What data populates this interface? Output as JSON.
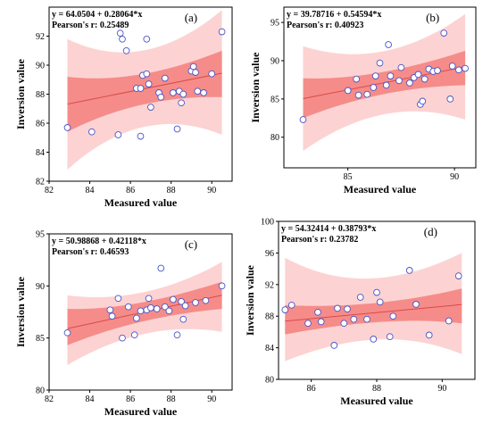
{
  "chart_data": [
    {
      "type": "scatter",
      "panel_label": "(a)",
      "equation": "y = 64.0504 + 0.28064*x",
      "pearson": "Pearson's r: 0.25489",
      "xlabel": "Measured value",
      "ylabel": "Inversion value",
      "xlim": [
        82,
        91
      ],
      "ylim": [
        82,
        94
      ],
      "xticks": [
        82,
        84,
        86,
        88,
        90
      ],
      "yticks": [
        82,
        84,
        86,
        88,
        90,
        92
      ],
      "intercept": 64.0504,
      "slope": 0.28064,
      "fit_x": [
        82.9,
        90.5
      ],
      "confidence_band": {
        "lower_start": 85.4,
        "lower_end": 87.8,
        "upper_start": 89.2,
        "upper_end": 91.0
      },
      "prediction_band": {
        "lower_start": 82.8,
        "lower_end": 85.2,
        "upper_start": 91.8,
        "upper_end": 93.8
      },
      "points": [
        [
          82.9,
          85.7
        ],
        [
          84.1,
          85.4
        ],
        [
          85.4,
          85.2
        ],
        [
          85.5,
          92.2
        ],
        [
          85.6,
          91.8
        ],
        [
          85.8,
          91.0
        ],
        [
          86.3,
          88.4
        ],
        [
          86.5,
          85.1
        ],
        [
          86.5,
          88.4
        ],
        [
          86.6,
          89.3
        ],
        [
          86.8,
          89.4
        ],
        [
          86.8,
          91.8
        ],
        [
          86.9,
          88.7
        ],
        [
          87.0,
          87.1
        ],
        [
          87.4,
          88.1
        ],
        [
          87.5,
          87.8
        ],
        [
          87.7,
          89.1
        ],
        [
          88.1,
          88.1
        ],
        [
          88.3,
          85.6
        ],
        [
          88.4,
          88.2
        ],
        [
          88.5,
          87.4
        ],
        [
          88.6,
          88.0
        ],
        [
          89.0,
          89.6
        ],
        [
          89.1,
          89.9
        ],
        [
          89.2,
          89.5
        ],
        [
          89.3,
          88.2
        ],
        [
          89.6,
          88.1
        ],
        [
          90.0,
          89.4
        ],
        [
          90.5,
          92.3
        ]
      ]
    },
    {
      "type": "scatter",
      "panel_label": "(b)",
      "equation": "y = 39.78716 + 0.54594*x",
      "pearson": "Pearson's r: 0.40923",
      "xlabel": "Measured value",
      "ylabel": "Inversion value",
      "xlim": [
        82,
        91
      ],
      "ylim": [
        76,
        97
      ],
      "xticks": [
        85,
        90
      ],
      "yticks": [
        80,
        85,
        90,
        95
      ],
      "intercept": 39.78716,
      "slope": 0.54594,
      "fit_x": [
        82.9,
        90.5
      ],
      "confidence_band": {
        "lower_start": 82.5,
        "lower_end": 86.8,
        "upper_start": 87.7,
        "upper_end": 91.3
      },
      "prediction_band": {
        "lower_start": 78.2,
        "lower_end": 82.3,
        "upper_start": 91.9,
        "upper_end": 96.1
      },
      "points": [
        [
          82.9,
          82.3
        ],
        [
          85.0,
          86.1
        ],
        [
          85.4,
          87.6
        ],
        [
          85.5,
          85.5
        ],
        [
          85.9,
          85.6
        ],
        [
          86.2,
          86.5
        ],
        [
          86.3,
          88.0
        ],
        [
          86.5,
          89.7
        ],
        [
          86.8,
          86.8
        ],
        [
          86.9,
          92.1
        ],
        [
          87.0,
          88.0
        ],
        [
          87.4,
          87.4
        ],
        [
          87.5,
          89.1
        ],
        [
          87.9,
          87.1
        ],
        [
          88.1,
          87.8
        ],
        [
          88.3,
          88.2
        ],
        [
          88.4,
          84.3
        ],
        [
          88.5,
          84.7
        ],
        [
          88.6,
          87.6
        ],
        [
          88.8,
          88.9
        ],
        [
          89.0,
          88.6
        ],
        [
          89.2,
          88.7
        ],
        [
          89.5,
          93.6
        ],
        [
          89.8,
          85.0
        ],
        [
          89.9,
          89.3
        ],
        [
          90.2,
          88.8
        ],
        [
          90.5,
          89.0
        ]
      ]
    },
    {
      "type": "scatter",
      "panel_label": "(c)",
      "equation": "y = 50.98868 + 0.42118*x",
      "pearson": "Pearson's r: 0.46593",
      "xlabel": "Measured value",
      "ylabel": "Inversion value",
      "xlim": [
        82,
        91
      ],
      "ylim": [
        80,
        95
      ],
      "xticks": [
        82,
        84,
        86,
        88,
        90
      ],
      "yticks": [
        80,
        85,
        90,
        95
      ],
      "intercept": 50.98868,
      "slope": 0.42118,
      "fit_x": [
        82.9,
        90.5
      ],
      "confidence_band": {
        "lower_start": 84.3,
        "lower_end": 87.8,
        "upper_start": 87.8,
        "upper_end": 90.4
      },
      "prediction_band": {
        "lower_start": 82.4,
        "lower_end": 85.6,
        "upper_start": 89.1,
        "upper_end": 92.3
      },
      "points": [
        [
          82.9,
          85.5
        ],
        [
          85.0,
          87.7
        ],
        [
          85.1,
          87.1
        ],
        [
          85.4,
          88.8
        ],
        [
          85.6,
          85.0
        ],
        [
          85.9,
          88.0
        ],
        [
          86.2,
          85.3
        ],
        [
          86.3,
          86.9
        ],
        [
          86.5,
          87.6
        ],
        [
          86.8,
          87.7
        ],
        [
          86.9,
          88.8
        ],
        [
          87.0,
          87.9
        ],
        [
          87.3,
          87.8
        ],
        [
          87.5,
          91.7
        ],
        [
          87.7,
          88.0
        ],
        [
          87.9,
          87.6
        ],
        [
          88.1,
          88.7
        ],
        [
          88.3,
          85.3
        ],
        [
          88.5,
          88.5
        ],
        [
          88.6,
          86.8
        ],
        [
          88.7,
          88.1
        ],
        [
          89.2,
          88.4
        ],
        [
          89.7,
          88.6
        ],
        [
          90.5,
          90.0
        ]
      ]
    },
    {
      "type": "scatter",
      "panel_label": "(d)",
      "equation": "y = 54.32414 + 0.38793*x",
      "pearson": "Pearson's r: 0.23782",
      "xlabel": "Measured value",
      "ylabel": "Inversion value",
      "xlim": [
        85,
        91
      ],
      "ylim": [
        80,
        100
      ],
      "xticks": [
        86,
        88,
        90
      ],
      "yticks": [
        80,
        84,
        88,
        92,
        96,
        100
      ],
      "intercept": 54.32414,
      "slope": 0.38793,
      "fit_x": [
        85.2,
        90.6
      ],
      "confidence_band": {
        "lower_start": 85.7,
        "lower_end": 87.1,
        "upper_start": 89.4,
        "upper_end": 91.5
      },
      "prediction_band": {
        "lower_start": 82.3,
        "lower_end": 83.2,
        "upper_start": 95.4,
        "upper_end": 96.0
      },
      "points": [
        [
          85.2,
          88.8
        ],
        [
          85.4,
          89.4
        ],
        [
          85.9,
          87.1
        ],
        [
          86.2,
          88.5
        ],
        [
          86.3,
          87.3
        ],
        [
          86.7,
          84.3
        ],
        [
          86.8,
          89.0
        ],
        [
          87.0,
          87.1
        ],
        [
          87.1,
          88.9
        ],
        [
          87.3,
          87.6
        ],
        [
          87.5,
          90.4
        ],
        [
          87.7,
          87.6
        ],
        [
          87.9,
          85.1
        ],
        [
          88.0,
          91.0
        ],
        [
          88.1,
          89.8
        ],
        [
          88.4,
          85.4
        ],
        [
          88.5,
          88.0
        ],
        [
          89.0,
          93.8
        ],
        [
          89.2,
          89.5
        ],
        [
          89.6,
          85.6
        ],
        [
          90.2,
          87.4
        ],
        [
          90.5,
          93.1
        ]
      ]
    }
  ]
}
